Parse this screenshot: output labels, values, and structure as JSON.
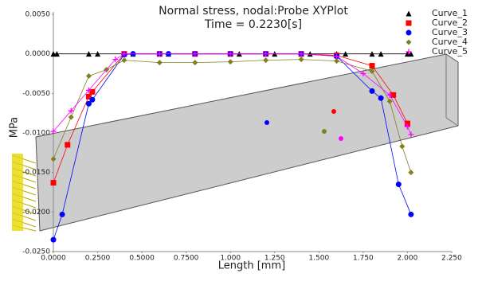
{
  "chart_data": {
    "type": "line",
    "title": "Normal stress, nodal:Probe XYPlot",
    "subtitle": "Time = 0.2230[s]",
    "x_label": "Length [mm]",
    "y_label": "MPa",
    "xlim": [
      0,
      2.25
    ],
    "ylim": [
      -0.025,
      0.005
    ],
    "xticks": [
      {
        "value": 0,
        "label": "0.0000"
      },
      {
        "value": 0.25,
        "label": "0.2500"
      },
      {
        "value": 0.5,
        "label": "0.5000"
      },
      {
        "value": 0.75,
        "label": "0.7500"
      },
      {
        "value": 1,
        "label": "1.000"
      },
      {
        "value": 1.25,
        "label": "1.250"
      },
      {
        "value": 1.5,
        "label": "1.500"
      },
      {
        "value": 1.75,
        "label": "1.750"
      },
      {
        "value": 2,
        "label": "2.000"
      },
      {
        "value": 2.25,
        "label": "2.250"
      }
    ],
    "yticks": [
      {
        "value": 0.005,
        "label": "0.0050"
      },
      {
        "value": 0,
        "label": "0.0000"
      },
      {
        "value": -0.005,
        "label": "-0.0050"
      },
      {
        "value": -0.01,
        "label": "-0.0100"
      },
      {
        "value": -0.015,
        "label": "-0.0150"
      },
      {
        "value": -0.02,
        "label": "-0.0200"
      },
      {
        "value": -0.025,
        "label": "-0.0250"
      }
    ],
    "series": [
      {
        "name": "Curve_1",
        "color": "#000000",
        "marker": "triangle",
        "x": [
          0,
          0.02,
          0.2,
          0.25,
          0.4,
          0.45,
          0.6,
          0.65,
          0.8,
          1.0,
          1.05,
          1.2,
          1.25,
          1.4,
          1.45,
          1.6,
          1.65,
          1.8,
          1.85,
          2.0,
          2.02
        ],
        "values": [
          0,
          0,
          0,
          0,
          0,
          0,
          0,
          0,
          0,
          0,
          0,
          0,
          0,
          0,
          0,
          0,
          0,
          0,
          0,
          0,
          0
        ]
      },
      {
        "name": "Curve_2",
        "color": "#ff0000",
        "marker": "square",
        "x": [
          0,
          0.08,
          0.2,
          0.22,
          0.4,
          0.6,
          0.8,
          1.0,
          1.2,
          1.4,
          1.6,
          1.8,
          1.92,
          2.0
        ],
        "values": [
          -0.0163,
          -0.0115,
          -0.0054,
          -0.0048,
          0,
          0,
          0,
          0,
          0,
          0,
          -0.0002,
          -0.0015,
          -0.0052,
          -0.0088
        ]
      },
      {
        "name": "Curve_3",
        "color": "#0000ff",
        "marker": "circle",
        "x": [
          0,
          0.05,
          0.2,
          0.22,
          0.4,
          0.45,
          0.6,
          0.65,
          0.8,
          1.0,
          1.2,
          1.4,
          1.6,
          1.8,
          1.85,
          1.95,
          2.02
        ],
        "values": [
          -0.0235,
          -0.0203,
          -0.0063,
          -0.0058,
          -0.0001,
          0,
          0,
          0,
          0,
          0,
          0,
          0,
          -0.0003,
          -0.0047,
          -0.0056,
          -0.0165,
          -0.0203
        ]
      },
      {
        "name": "Curve_4",
        "color": "#808020",
        "marker": "diamond",
        "x": [
          0,
          0.1,
          0.2,
          0.3,
          0.4,
          0.6,
          0.8,
          1.0,
          1.2,
          1.4,
          1.6,
          1.8,
          1.9,
          1.97,
          2.02
        ],
        "values": [
          -0.0133,
          -0.008,
          -0.0028,
          -0.002,
          -0.0008,
          -0.0011,
          -0.0011,
          -0.001,
          -0.0008,
          -0.0007,
          -0.0009,
          -0.0022,
          -0.006,
          -0.0117,
          -0.015
        ]
      },
      {
        "name": "Curve_5",
        "color": "#ff00ff",
        "marker": "plus",
        "x": [
          0,
          0.1,
          0.2,
          0.35,
          0.4,
          0.6,
          0.8,
          1.0,
          1.2,
          1.4,
          1.6,
          1.75,
          1.9,
          2.0,
          2.02
        ],
        "values": [
          -0.0098,
          -0.0072,
          -0.0046,
          -0.0007,
          0,
          0,
          0,
          0,
          0,
          0,
          -0.0003,
          -0.0025,
          -0.0052,
          -0.0092,
          -0.0102
        ]
      }
    ]
  }
}
